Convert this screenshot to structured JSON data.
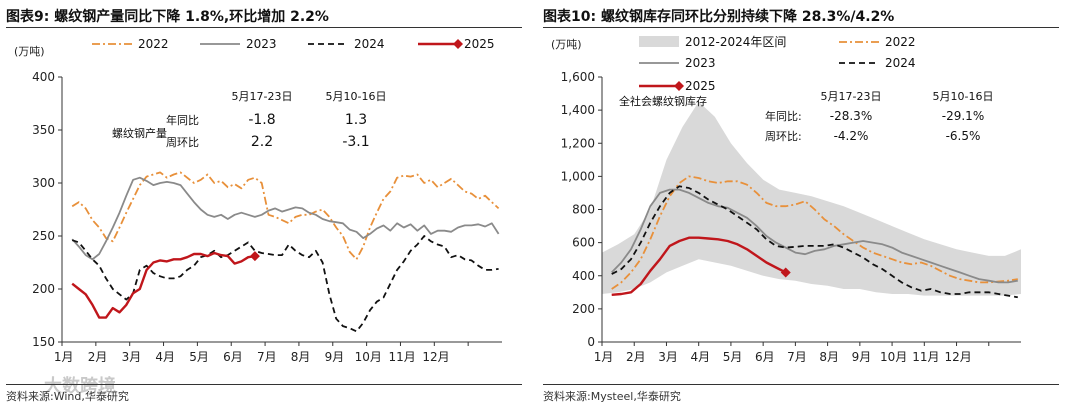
{
  "panels": [
    {
      "title": "图表9:  螺纹钢产量同比下降 1.8%,环比增加 2.2%",
      "source": "资料来源:Wind,华泰研究",
      "unit": "(万吨)",
      "annotation_header": [
        "5月17-23日",
        "5月10-16日"
      ],
      "annotation_rows": [
        {
          "label": "年同比",
          "v1": "-1.8",
          "v2": "1.3"
        },
        {
          "label": "周环比",
          "v1": "2.2",
          "v2": "-3.1"
        }
      ],
      "annotation_side_label": "螺纹钢产量"
    },
    {
      "title": "图表10:  螺纹钢库存同环比分别持续下降 28.3%/4.2%",
      "source": "资料来源:Mysteel,华泰研究",
      "unit": "(万吨)",
      "annotation_header": [
        "5月17-23日",
        "5月10-16日"
      ],
      "annotation_rows": [
        {
          "label": "年同比:",
          "v1": "-28.3%",
          "v2": "-29.1%"
        },
        {
          "label": "周环比:",
          "v1": "-4.2%",
          "v2": "-6.5%"
        }
      ],
      "annotation_side_label": "全社会螺纹钢库存"
    }
  ],
  "watermark": "大数跨境",
  "chart_data": [
    {
      "type": "line",
      "xlabel": "",
      "ylabel": "(万吨)",
      "ylim": [
        150,
        400
      ],
      "yticks": [
        150,
        200,
        250,
        300,
        350,
        400
      ],
      "xlim": [
        0,
        13
      ],
      "xtick_labels": [
        "1月",
        "2月",
        "3月",
        "4月",
        "5月",
        "6月",
        "7月",
        "8月",
        "9月",
        "10月",
        "11月",
        "12月"
      ],
      "legend_placement": "top",
      "grid": false,
      "series": [
        {
          "name": "2022",
          "color": "#E8903A",
          "style": "dashdot",
          "x": [
            0.3,
            0.5,
            0.7,
            0.9,
            1.1,
            1.3,
            1.5,
            1.7,
            1.9,
            2.1,
            2.3,
            2.5,
            2.7,
            2.9,
            3.1,
            3.3,
            3.5,
            3.7,
            3.9,
            4.1,
            4.3,
            4.5,
            4.7,
            4.9,
            5.1,
            5.3,
            5.5,
            5.7,
            5.9,
            6.1,
            6.3,
            6.5,
            6.7,
            6.9,
            7.1,
            7.3,
            7.5,
            7.7,
            7.9,
            8.1,
            8.3,
            8.5,
            8.7,
            8.9,
            9.1,
            9.3,
            9.5,
            9.7,
            9.9,
            10.1,
            10.3,
            10.5,
            10.7,
            10.9,
            11.1,
            11.3,
            11.5,
            11.7,
            11.9,
            12.1,
            12.3,
            12.5,
            12.7,
            12.9
          ],
          "y": [
            278,
            282,
            276,
            265,
            258,
            248,
            245,
            258,
            272,
            285,
            298,
            306,
            308,
            310,
            305,
            308,
            310,
            305,
            300,
            303,
            308,
            300,
            302,
            296,
            299,
            295,
            303,
            305,
            300,
            270,
            268,
            265,
            262,
            268,
            270,
            270,
            273,
            275,
            268,
            258,
            250,
            235,
            228,
            240,
            258,
            272,
            285,
            292,
            305,
            307,
            306,
            308,
            300,
            303,
            296,
            300,
            304,
            298,
            292,
            290,
            285,
            288,
            282,
            276
          ]
        },
        {
          "name": "2023",
          "color": "#8A8A8A",
          "style": "solid",
          "x": [
            0.3,
            0.5,
            0.7,
            0.9,
            1.1,
            1.3,
            1.5,
            1.7,
            1.9,
            2.1,
            2.3,
            2.5,
            2.7,
            2.9,
            3.1,
            3.3,
            3.5,
            3.7,
            3.9,
            4.1,
            4.3,
            4.5,
            4.7,
            4.9,
            5.1,
            5.3,
            5.5,
            5.7,
            5.9,
            6.1,
            6.3,
            6.5,
            6.7,
            6.9,
            7.1,
            7.3,
            7.5,
            7.7,
            7.9,
            8.1,
            8.3,
            8.5,
            8.7,
            8.9,
            9.1,
            9.3,
            9.5,
            9.7,
            9.9,
            10.1,
            10.3,
            10.5,
            10.7,
            10.9,
            11.1,
            11.3,
            11.5,
            11.7,
            11.9,
            12.1,
            12.3,
            12.5,
            12.7,
            12.9
          ],
          "y": [
            247,
            240,
            232,
            228,
            233,
            245,
            258,
            272,
            288,
            303,
            305,
            302,
            298,
            300,
            301,
            300,
            298,
            290,
            282,
            275,
            270,
            268,
            270,
            266,
            270,
            272,
            270,
            268,
            270,
            274,
            276,
            273,
            275,
            277,
            276,
            272,
            270,
            266,
            264,
            263,
            262,
            256,
            254,
            248,
            252,
            257,
            260,
            255,
            262,
            258,
            261,
            255,
            260,
            252,
            255,
            255,
            254,
            258,
            260,
            260,
            261,
            259,
            262,
            252
          ]
        },
        {
          "name": "2024",
          "color": "#111111",
          "style": "dashed",
          "x": [
            0.3,
            0.5,
            0.7,
            0.9,
            1.1,
            1.3,
            1.5,
            1.7,
            1.9,
            2.1,
            2.3,
            2.5,
            2.7,
            2.9,
            3.1,
            3.3,
            3.5,
            3.7,
            3.9,
            4.1,
            4.3,
            4.5,
            4.7,
            4.9,
            5.1,
            5.3,
            5.5,
            5.7,
            5.9,
            6.1,
            6.3,
            6.5,
            6.7,
            6.9,
            7.1,
            7.3,
            7.5,
            7.7,
            7.9,
            8.1,
            8.3,
            8.5,
            8.7,
            8.9,
            9.1,
            9.3,
            9.5,
            9.7,
            9.9,
            10.1,
            10.3,
            10.5,
            10.7,
            10.9,
            11.1,
            11.3,
            11.5,
            11.7,
            11.9,
            12.1,
            12.3,
            12.5,
            12.7,
            12.9
          ],
          "y": [
            246,
            244,
            236,
            228,
            222,
            210,
            200,
            195,
            190,
            196,
            218,
            222,
            215,
            212,
            210,
            210,
            212,
            218,
            222,
            230,
            232,
            236,
            230,
            232,
            236,
            240,
            244,
            236,
            234,
            233,
            232,
            232,
            242,
            236,
            232,
            230,
            236,
            225,
            195,
            172,
            165,
            163,
            160,
            168,
            180,
            188,
            192,
            205,
            218,
            226,
            236,
            242,
            250,
            245,
            242,
            240,
            230,
            232,
            228,
            227,
            222,
            218,
            218,
            219
          ]
        },
        {
          "name": "2025",
          "color": "#C0161B",
          "style": "solid",
          "marker": "diamond-last",
          "x": [
            0.3,
            0.5,
            0.7,
            0.9,
            1.1,
            1.3,
            1.5,
            1.7,
            1.9,
            2.1,
            2.3,
            2.5,
            2.7,
            2.9,
            3.1,
            3.3,
            3.5,
            3.7,
            3.9,
            4.1,
            4.3,
            4.5,
            4.7,
            4.9,
            5.1,
            5.3,
            5.5,
            5.7
          ],
          "y": [
            205,
            200,
            195,
            185,
            173,
            173,
            182,
            178,
            185,
            196,
            200,
            218,
            225,
            227,
            226,
            228,
            228,
            230,
            233,
            233,
            231,
            234,
            232,
            231,
            224,
            226,
            230,
            231
          ]
        }
      ]
    },
    {
      "type": "line",
      "xlabel": "",
      "ylabel": "(万吨)",
      "ylim": [
        0,
        1600
      ],
      "yticks": [
        0,
        200,
        400,
        600,
        800,
        1000,
        1200,
        1400,
        1600
      ],
      "ytick_labels": [
        "0",
        "200",
        "400",
        "600",
        "800",
        "1,000",
        "1,200",
        "1,400",
        "1,600"
      ],
      "xlim": [
        0,
        13
      ],
      "xtick_labels": [
        "1月",
        "2月",
        "3月",
        "4月",
        "5月",
        "6月",
        "7月",
        "8月",
        "9月",
        "10月",
        "11月",
        "12月"
      ],
      "legend_placement": "top",
      "grid": false,
      "range_band": {
        "name": "2012-2024年区间",
        "color": "#D9D9D9",
        "x": [
          0.0,
          0.5,
          1.0,
          1.5,
          2.0,
          2.5,
          3.0,
          3.5,
          4.0,
          4.5,
          5.0,
          5.5,
          6.0,
          6.5,
          7.0,
          7.5,
          8.0,
          8.5,
          9.0,
          9.5,
          10.0,
          10.5,
          11.0,
          11.5,
          12.0,
          12.5,
          13.0
        ],
        "upper": [
          540,
          590,
          650,
          800,
          1100,
          1300,
          1450,
          1360,
          1200,
          1080,
          980,
          920,
          900,
          880,
          850,
          820,
          780,
          740,
          700,
          660,
          620,
          590,
          560,
          540,
          520,
          520,
          560
        ],
        "lower": [
          290,
          300,
          320,
          360,
          420,
          460,
          500,
          480,
          460,
          430,
          400,
          380,
          370,
          350,
          340,
          320,
          320,
          300,
          290,
          290,
          280,
          280,
          280,
          280,
          280,
          280,
          290
        ]
      },
      "series": [
        {
          "name": "2022",
          "color": "#E8903A",
          "style": "dashdot",
          "x": [
            0.3,
            0.6,
            0.9,
            1.2,
            1.5,
            1.8,
            2.1,
            2.4,
            2.7,
            3.0,
            3.3,
            3.6,
            3.9,
            4.2,
            4.5,
            4.8,
            5.1,
            5.4,
            5.7,
            6.0,
            6.3,
            6.6,
            6.9,
            7.2,
            7.5,
            7.8,
            8.1,
            8.4,
            8.7,
            9.0,
            9.3,
            9.6,
            9.9,
            10.2,
            10.5,
            10.8,
            11.1,
            11.4,
            11.7,
            12.0,
            12.3,
            12.6,
            12.9
          ],
          "y": [
            320,
            360,
            420,
            500,
            620,
            760,
            880,
            960,
            1000,
            990,
            970,
            960,
            970,
            970,
            950,
            900,
            840,
            820,
            820,
            830,
            850,
            800,
            740,
            700,
            650,
            610,
            570,
            540,
            520,
            500,
            480,
            470,
            480,
            460,
            430,
            400,
            380,
            370,
            360,
            360,
            365,
            370,
            380
          ]
        },
        {
          "name": "2023",
          "color": "#8A8A8A",
          "style": "solid",
          "x": [
            0.3,
            0.6,
            0.9,
            1.2,
            1.5,
            1.8,
            2.1,
            2.4,
            2.7,
            3.0,
            3.3,
            3.6,
            3.9,
            4.2,
            4.5,
            4.8,
            5.1,
            5.4,
            5.7,
            6.0,
            6.3,
            6.6,
            6.9,
            7.2,
            7.5,
            7.8,
            8.1,
            8.4,
            8.7,
            9.0,
            9.3,
            9.6,
            9.9,
            10.2,
            10.5,
            10.8,
            11.1,
            11.4,
            11.7,
            12.0,
            12.3,
            12.6,
            12.9
          ],
          "y": [
            420,
            480,
            560,
            680,
            820,
            900,
            920,
            920,
            900,
            870,
            840,
            820,
            810,
            780,
            750,
            700,
            640,
            600,
            570,
            540,
            530,
            550,
            560,
            580,
            590,
            600,
            610,
            600,
            590,
            570,
            540,
            520,
            500,
            480,
            460,
            440,
            420,
            400,
            380,
            370,
            360,
            360,
            370
          ]
        },
        {
          "name": "2024",
          "color": "#111111",
          "style": "dashed",
          "x": [
            0.3,
            0.6,
            0.9,
            1.2,
            1.5,
            1.8,
            2.1,
            2.4,
            2.7,
            3.0,
            3.3,
            3.6,
            3.9,
            4.2,
            4.5,
            4.8,
            5.1,
            5.4,
            5.7,
            6.0,
            6.3,
            6.6,
            6.9,
            7.2,
            7.5,
            7.8,
            8.1,
            8.4,
            8.7,
            9.0,
            9.3,
            9.6,
            9.9,
            10.2,
            10.5,
            10.8,
            11.1,
            11.4,
            11.7,
            12.0,
            12.3,
            12.6,
            12.9
          ],
          "y": [
            410,
            440,
            500,
            600,
            720,
            820,
            900,
            940,
            930,
            900,
            860,
            830,
            800,
            760,
            720,
            680,
            620,
            580,
            570,
            575,
            580,
            580,
            580,
            590,
            570,
            540,
            510,
            470,
            440,
            400,
            360,
            330,
            310,
            320,
            300,
            290,
            290,
            300,
            300,
            300,
            290,
            280,
            270
          ]
        },
        {
          "name": "2025",
          "color": "#C0161B",
          "style": "solid",
          "marker": "diamond-last",
          "x": [
            0.3,
            0.6,
            0.9,
            1.2,
            1.5,
            1.8,
            2.1,
            2.4,
            2.7,
            3.0,
            3.3,
            3.6,
            3.9,
            4.2,
            4.5,
            4.8,
            5.1,
            5.4,
            5.7
          ],
          "y": [
            285,
            290,
            300,
            350,
            430,
            500,
            580,
            610,
            630,
            630,
            625,
            620,
            610,
            590,
            560,
            520,
            480,
            450,
            420
          ]
        }
      ]
    }
  ]
}
